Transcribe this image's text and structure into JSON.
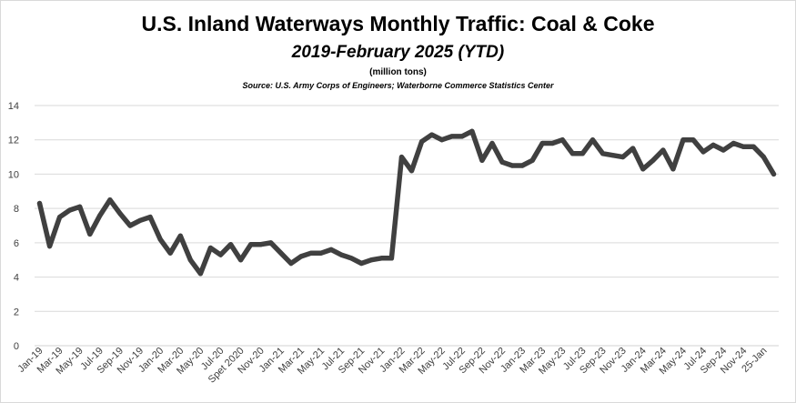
{
  "chart_data": {
    "type": "line",
    "title": "U.S. Inland Waterways Monthly Traffic:  Coal & Coke",
    "subtitle": "2019-February 2025 (YTD)",
    "units": "(million tons)",
    "source": "Source:  U.S. Army Corps of Engineers; Waterborne Commerce Statistics Center",
    "xlabel": "",
    "ylabel": "",
    "ylim": [
      0,
      14
    ],
    "yticks": [
      0,
      2,
      4,
      6,
      8,
      10,
      12,
      14
    ],
    "grid": true,
    "legend": "none",
    "line_color": "#404040",
    "x": [
      "Jan-19",
      "Feb-19",
      "Mar-19",
      "Apr-19",
      "May-19",
      "Jun-19",
      "Jul-19",
      "Aug-19",
      "Sep-19",
      "Oct-19",
      "Nov-19",
      "Dec-19",
      "Jan-20",
      "Feb-20",
      "Mar-20",
      "Apr-20",
      "May-20",
      "Jun-20",
      "Jul-20",
      "Aug-20",
      "Sept 2020",
      "Oct-20",
      "Nov-20",
      "Dec-20",
      "Jan-21",
      "Feb-21",
      "Mar-21",
      "Apr-21",
      "May-21",
      "Jun-21",
      "Jul-21",
      "Aug-21",
      "Sep-21",
      "Oct-21",
      "Nov-21",
      "Dec-21",
      "Jan-22",
      "Feb-22",
      "Mar-22",
      "Apr-22",
      "May-22",
      "Jun-22",
      "Jul-22",
      "Aug-22",
      "Sep-22",
      "Oct-22",
      "Nov-22",
      "Dec-22",
      "Jan-23",
      "Feb-23",
      "Mar-23",
      "Apr-23",
      "May-23",
      "Jun-23",
      "Jul-23",
      "Aug-23",
      "Sep-23",
      "Oct-23",
      "Nov-23",
      "Dec-23",
      "Jan-24",
      "Feb-24",
      "Mar-24",
      "Apr-24",
      "May-24",
      "Jun-24",
      "Jul-24",
      "Aug-24",
      "Sep-24",
      "Oct-24",
      "Nov-24",
      "Dec-24",
      "25-Jan",
      "Feb-25"
    ],
    "tick_labels": [
      "Jan-19",
      "Mar-19",
      "May-19",
      "Jul-19",
      "Sep-19",
      "Nov-19",
      "Jan-20",
      "Mar-20",
      "May-20",
      "Jul-20",
      "Spet 2020",
      "Nov-20",
      "Jan-21",
      "Mar-21",
      "May-21",
      "Jul-21",
      "Sep-21",
      "Nov-21",
      "Jan-22",
      "Mar-22",
      "May-22",
      "Jul-22",
      "Sep-22",
      "Nov-22",
      "Jan-23",
      "Mar-23",
      "May-23",
      "Jul-23",
      "Sep-23",
      "Nov-23",
      "Jan-24",
      "Mar-24",
      "May-24",
      "Jul-24",
      "Sep-24",
      "Nov-24",
      "25-Jan"
    ],
    "series": [
      {
        "values": [
          8.3,
          5.8,
          7.5,
          7.9,
          8.1,
          6.5,
          7.6,
          8.5,
          7.7,
          7.0,
          7.3,
          7.5,
          6.2,
          5.4,
          6.4,
          5.0,
          4.2,
          5.7,
          5.3,
          5.9,
          5.0,
          5.9,
          5.9,
          6.0,
          5.4,
          4.8,
          5.2,
          5.4,
          5.4,
          5.6,
          5.3,
          5.1,
          4.8,
          5.0,
          5.1,
          5.1,
          11.0,
          10.2,
          11.9,
          12.3,
          12.0,
          12.2,
          12.2,
          12.5,
          10.8,
          11.8,
          10.7,
          10.5,
          10.5,
          10.8,
          11.8,
          11.8,
          12.0,
          11.2,
          11.2,
          12.0,
          11.2,
          11.1,
          11.0,
          11.5,
          10.3,
          10.8,
          11.4,
          10.3,
          12.0,
          12.0,
          11.3,
          11.7,
          11.4,
          11.8,
          11.6,
          11.6,
          11.0,
          10.0
        ]
      }
    ]
  }
}
